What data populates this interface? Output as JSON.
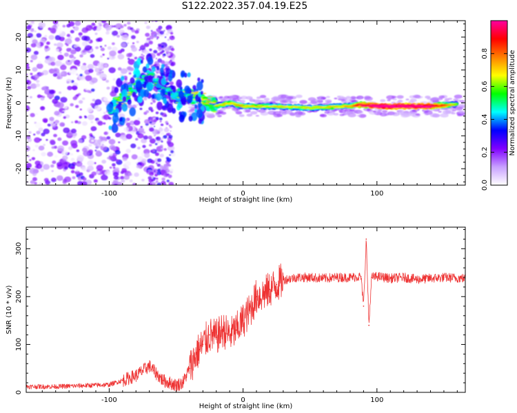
{
  "title": "S122.2022.357.04.19.E25",
  "chart_data": [
    {
      "type": "heatmap",
      "panel": "top",
      "xlabel": "Height of straight line (km)",
      "ylabel": "Frequency (Hz)",
      "xlim": [
        -162,
        166
      ],
      "ylim": [
        -25,
        25
      ],
      "x_ticks": [
        -100,
        0,
        100
      ],
      "y_ticks": [
        -20,
        -10,
        0,
        10,
        20
      ],
      "colorbar": {
        "label": "Normalized spectral amplitude",
        "range": [
          0,
          1
        ],
        "ticks": [
          "0.0",
          "0.2",
          "0.4",
          "0.6",
          "0.8"
        ],
        "colormap": [
          "#ffffff",
          "#c8a0ff",
          "#8000ff",
          "#0000ff",
          "#00ffff",
          "#00ff00",
          "#ffff00",
          "#ff8000",
          "#ff0000",
          "#ff00a0"
        ]
      },
      "ridge": [
        {
          "x": -100,
          "f": -2,
          "amp": 0.5
        },
        {
          "x": -90,
          "f": 1,
          "amp": 0.55
        },
        {
          "x": -80,
          "f": 5,
          "amp": 0.5
        },
        {
          "x": -70,
          "f": 8,
          "amp": 0.45
        },
        {
          "x": -60,
          "f": 5,
          "amp": 0.4
        },
        {
          "x": -50,
          "f": 2,
          "amp": 0.45
        },
        {
          "x": -40,
          "f": 2,
          "amp": 0.55
        },
        {
          "x": -30,
          "f": 1,
          "amp": 0.6
        },
        {
          "x": -20,
          "f": -1,
          "amp": 0.55
        },
        {
          "x": -10,
          "f": 0,
          "amp": 0.6
        },
        {
          "x": 0,
          "f": -1,
          "amp": 0.6
        },
        {
          "x": 20,
          "f": -1,
          "amp": 0.55
        },
        {
          "x": 50,
          "f": -1.5,
          "amp": 0.55
        },
        {
          "x": 80,
          "f": -1,
          "amp": 0.6
        },
        {
          "x": 85,
          "f": -0.5,
          "amp": 0.75
        },
        {
          "x": 100,
          "f": -1,
          "amp": 0.95
        },
        {
          "x": 140,
          "f": -1,
          "amp": 0.9
        },
        {
          "x": 160,
          "f": -0.5,
          "amp": 0.5
        }
      ]
    },
    {
      "type": "line",
      "panel": "bottom",
      "xlabel": "Height of straight line (km)",
      "ylabel": "SNR (10 * v/v)",
      "xlim": [
        -162,
        166
      ],
      "ylim": [
        0,
        345
      ],
      "x_ticks": [
        -100,
        0,
        100
      ],
      "y_ticks": [
        0,
        100,
        200,
        300
      ],
      "color": "#ee3333",
      "series": [
        {
          "x": [
            -162,
            -140,
            -120,
            -100,
            -90,
            -80,
            -75,
            -70,
            -65,
            -60,
            -55,
            -50,
            -45,
            -40,
            -35,
            -30,
            -25,
            -20,
            -15,
            -10,
            -5,
            0,
            5,
            10,
            15,
            20,
            25,
            30,
            40,
            50,
            60,
            70,
            80,
            88,
            90,
            92,
            94,
            96,
            100,
            110,
            120,
            130,
            140,
            150,
            166
          ],
          "y": [
            12,
            12,
            14,
            16,
            25,
            35,
            45,
            55,
            40,
            25,
            20,
            15,
            20,
            50,
            80,
            100,
            120,
            115,
            130,
            120,
            130,
            150,
            170,
            200,
            205,
            215,
            225,
            235,
            240,
            240,
            238,
            240,
            240,
            242,
            180,
            320,
            140,
            240,
            242,
            238,
            240,
            236,
            238,
            240,
            238
          ]
        }
      ]
    }
  ]
}
